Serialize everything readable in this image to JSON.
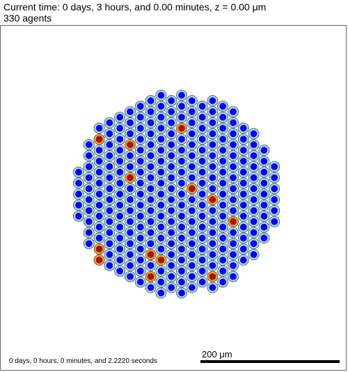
{
  "header": {
    "line1": "Current time: 0 days, 3 hours, and 0.00 minutes, z = 0.00 μm",
    "line2": "330 agents"
  },
  "footer": {
    "elapsed": "0 days, 0 hours, 0 minutes, and 2.2220 seconds",
    "scale_label": "200 μm"
  },
  "colors": {
    "cell_outer": "#a6d4d2",
    "cell_inner": "#0000ff",
    "special_outer": "#e8a020",
    "special_inner": "#b01010",
    "outline": "#4a5a6a"
  }
}
